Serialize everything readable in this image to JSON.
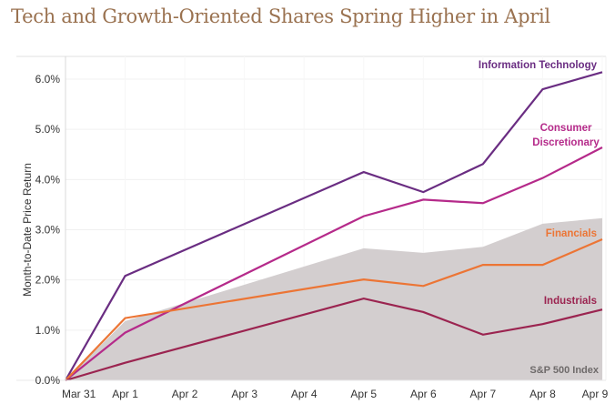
{
  "chart_data": {
    "type": "line",
    "title": "Tech and Growth-Oriented Shares Spring Higher in April",
    "xlabel": "",
    "ylabel": "Month-to-Date Price Return",
    "categories": [
      "Mar 31",
      "Apr 1",
      "Apr 2",
      "Apr 3",
      "Apr 4",
      "Apr 5",
      "Apr 6",
      "Apr 7",
      "Apr 8",
      "Apr 9"
    ],
    "ylim": [
      0,
      6.0
    ],
    "yticks": [
      0,
      1,
      2,
      3,
      4,
      5,
      6
    ],
    "ytick_labels": [
      "0.0%",
      "1.0%",
      "2.0%",
      "3.0%",
      "4.0%",
      "5.0%",
      "6.0%"
    ],
    "grid": true,
    "note": "Apr 2 through Apr 4 have no data points; lines interpolate straight from Apr 1 to Apr 5.",
    "area": {
      "name": "S&P 500 Index",
      "label": "S&P 500 Index",
      "color": "#d3cecf",
      "label_color": "#6e6a6a",
      "points": [
        {
          "x": "Mar 31",
          "y": 0.0
        },
        {
          "x": "Apr 1",
          "y": 1.18
        },
        {
          "x": "Apr 5",
          "y": 2.63
        },
        {
          "x": "Apr 6",
          "y": 2.54
        },
        {
          "x": "Apr 7",
          "y": 2.66
        },
        {
          "x": "Apr 8",
          "y": 3.12
        },
        {
          "x": "Apr 9",
          "y": 3.23
        }
      ]
    },
    "series": [
      {
        "name": "Information Technology",
        "label_lines": [
          "Information Technology"
        ],
        "color": "#6a2d82",
        "points": [
          {
            "x": "Mar 31",
            "y": 0.0
          },
          {
            "x": "Apr 1",
            "y": 2.08
          },
          {
            "x": "Apr 5",
            "y": 4.15
          },
          {
            "x": "Apr 6",
            "y": 3.75
          },
          {
            "x": "Apr 7",
            "y": 4.31
          },
          {
            "x": "Apr 8",
            "y": 5.8
          },
          {
            "x": "Apr 9",
            "y": 6.14
          }
        ]
      },
      {
        "name": "Consumer Discretionary",
        "label_lines": [
          "Consumer",
          "Discretionary"
        ],
        "color": "#b52a8a",
        "points": [
          {
            "x": "Mar 31",
            "y": 0.0
          },
          {
            "x": "Apr 1",
            "y": 0.95
          },
          {
            "x": "Apr 5",
            "y": 3.27
          },
          {
            "x": "Apr 6",
            "y": 3.6
          },
          {
            "x": "Apr 7",
            "y": 3.53
          },
          {
            "x": "Apr 8",
            "y": 4.03
          },
          {
            "x": "Apr 9",
            "y": 4.64
          }
        ]
      },
      {
        "name": "Financials",
        "label_lines": [
          "Financials"
        ],
        "color": "#ec7535",
        "points": [
          {
            "x": "Mar 31",
            "y": 0.0
          },
          {
            "x": "Apr 1",
            "y": 1.24
          },
          {
            "x": "Apr 5",
            "y": 2.01
          },
          {
            "x": "Apr 6",
            "y": 1.88
          },
          {
            "x": "Apr 7",
            "y": 2.3
          },
          {
            "x": "Apr 8",
            "y": 2.3
          },
          {
            "x": "Apr 9",
            "y": 2.81
          }
        ]
      },
      {
        "name": "Industrials",
        "label_lines": [
          "Industrials"
        ],
        "color": "#9b2450",
        "points": [
          {
            "x": "Mar 31",
            "y": 0.0
          },
          {
            "x": "Apr 1",
            "y": 0.35
          },
          {
            "x": "Apr 5",
            "y": 1.63
          },
          {
            "x": "Apr 6",
            "y": 1.36
          },
          {
            "x": "Apr 7",
            "y": 0.91
          },
          {
            "x": "Apr 8",
            "y": 1.12
          },
          {
            "x": "Apr 9",
            "y": 1.41
          }
        ]
      }
    ]
  }
}
